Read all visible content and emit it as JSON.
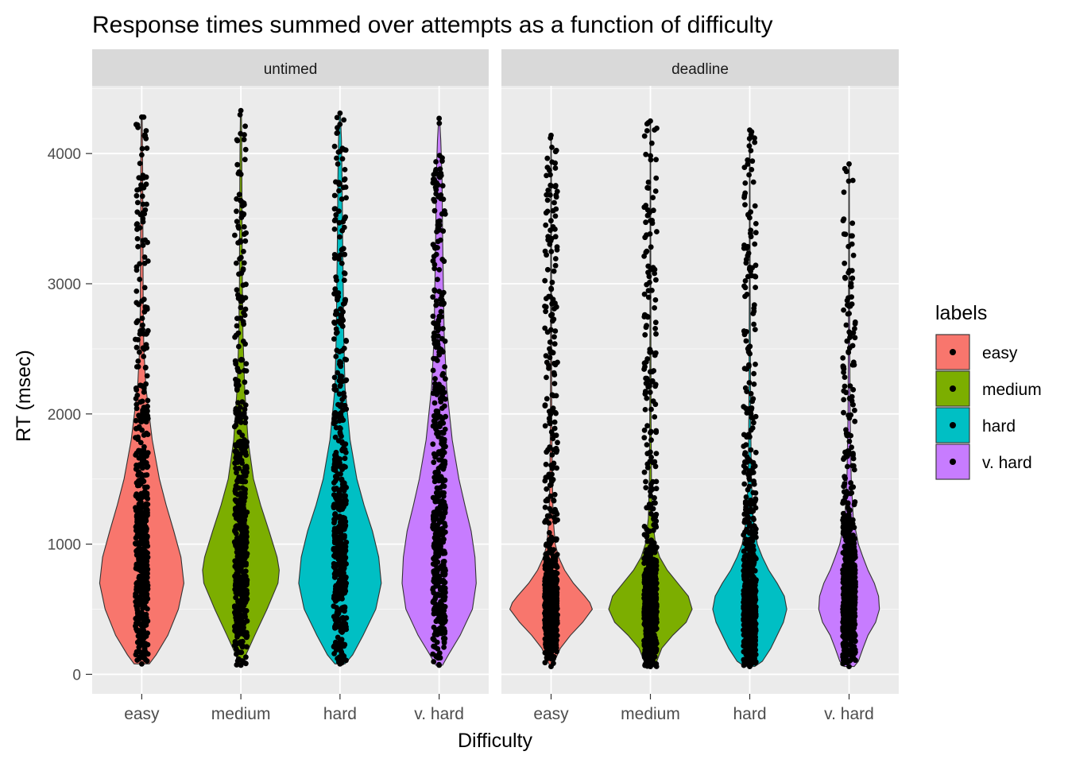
{
  "chart_data": {
    "type": "violin",
    "title": "Response times summed over attempts as a function of difficulty",
    "xlabel": "Difficulty",
    "ylabel": "RT (msec)",
    "categories": [
      "easy",
      "medium",
      "hard",
      "v. hard"
    ],
    "ylim": [
      -150,
      4520
    ],
    "y_ticks": [
      0,
      1000,
      2000,
      3000,
      4000
    ],
    "grid": true,
    "legend": {
      "title": "labels",
      "placement": "right",
      "entries": [
        "easy",
        "medium",
        "hard",
        "v. hard"
      ]
    },
    "colors": {
      "easy": "#F8766D",
      "medium": "#7CAE00",
      "hard": "#00BFC4",
      "v. hard": "#C77CFF",
      "panel_bg": "#EBEBEB",
      "strip_bg": "#D9D9D9",
      "points": "#000000"
    },
    "panels": [
      {
        "label": "untimed",
        "violins": [
          {
            "category": "easy",
            "min": 80,
            "max": 4280,
            "profile": [
              [
                80,
                0.18
              ],
              [
                150,
                0.34
              ],
              [
                300,
                0.62
              ],
              [
                500,
                0.87
              ],
              [
                700,
                1.0
              ],
              [
                900,
                0.93
              ],
              [
                1100,
                0.76
              ],
              [
                1300,
                0.58
              ],
              [
                1500,
                0.42
              ],
              [
                1800,
                0.25
              ],
              [
                2200,
                0.1
              ],
              [
                2500,
                0.05
              ],
              [
                2800,
                0.035
              ],
              [
                3200,
                0.03
              ],
              [
                3600,
                0.025
              ],
              [
                4000,
                0.02
              ],
              [
                4280,
                0.01
              ]
            ]
          },
          {
            "category": "medium",
            "min": 70,
            "max": 4330,
            "profile": [
              [
                70,
                0.05
              ],
              [
                150,
                0.12
              ],
              [
                300,
                0.33
              ],
              [
                500,
                0.62
              ],
              [
                700,
                0.88
              ],
              [
                800,
                0.91
              ],
              [
                900,
                0.86
              ],
              [
                1100,
                0.67
              ],
              [
                1300,
                0.47
              ],
              [
                1500,
                0.3
              ],
              [
                1800,
                0.17
              ],
              [
                2200,
                0.09
              ],
              [
                2600,
                0.05
              ],
              [
                3000,
                0.035
              ],
              [
                3400,
                0.03
              ],
              [
                3800,
                0.025
              ],
              [
                4100,
                0.02
              ],
              [
                4330,
                0.01
              ]
            ]
          },
          {
            "category": "hard",
            "min": 80,
            "max": 4310,
            "profile": [
              [
                80,
                0.12
              ],
              [
                150,
                0.3
              ],
              [
                300,
                0.55
              ],
              [
                500,
                0.85
              ],
              [
                700,
                0.98
              ],
              [
                900,
                0.92
              ],
              [
                1100,
                0.77
              ],
              [
                1300,
                0.57
              ],
              [
                1500,
                0.4
              ],
              [
                1800,
                0.24
              ],
              [
                2200,
                0.12
              ],
              [
                2600,
                0.09
              ],
              [
                3000,
                0.075
              ],
              [
                3400,
                0.06
              ],
              [
                3800,
                0.05
              ],
              [
                4100,
                0.035
              ],
              [
                4310,
                0.01
              ]
            ]
          },
          {
            "category": "v. hard",
            "min": 70,
            "max": 4270,
            "profile": [
              [
                70,
                0.08
              ],
              [
                150,
                0.22
              ],
              [
                300,
                0.5
              ],
              [
                500,
                0.79
              ],
              [
                700,
                0.88
              ],
              [
                900,
                0.85
              ],
              [
                1100,
                0.76
              ],
              [
                1300,
                0.61
              ],
              [
                1500,
                0.47
              ],
              [
                1800,
                0.31
              ],
              [
                2200,
                0.18
              ],
              [
                2600,
                0.12
              ],
              [
                3000,
                0.1
              ],
              [
                3400,
                0.08
              ],
              [
                3800,
                0.07
              ],
              [
                4100,
                0.04
              ],
              [
                4270,
                0.01
              ]
            ]
          }
        ]
      },
      {
        "label": "deadline",
        "violins": [
          {
            "category": "easy",
            "min": 60,
            "max": 4140,
            "profile": [
              [
                60,
                0.02
              ],
              [
                100,
                0.08
              ],
              [
                200,
                0.22
              ],
              [
                300,
                0.46
              ],
              [
                400,
                0.75
              ],
              [
                500,
                0.98
              ],
              [
                550,
                0.92
              ],
              [
                600,
                0.8
              ],
              [
                700,
                0.53
              ],
              [
                800,
                0.32
              ],
              [
                900,
                0.18
              ],
              [
                1000,
                0.1
              ],
              [
                1200,
                0.05
              ],
              [
                1500,
                0.03
              ],
              [
                2000,
                0.015
              ],
              [
                3000,
                0.01
              ],
              [
                4140,
                0.005
              ]
            ]
          },
          {
            "category": "medium",
            "min": 60,
            "max": 4250,
            "profile": [
              [
                60,
                0.08
              ],
              [
                100,
                0.15
              ],
              [
                200,
                0.27
              ],
              [
                300,
                0.53
              ],
              [
                400,
                0.85
              ],
              [
                500,
                0.99
              ],
              [
                600,
                0.9
              ],
              [
                700,
                0.65
              ],
              [
                800,
                0.4
              ],
              [
                900,
                0.22
              ],
              [
                1000,
                0.12
              ],
              [
                1200,
                0.05
              ],
              [
                1500,
                0.025
              ],
              [
                2000,
                0.015
              ],
              [
                3000,
                0.01
              ],
              [
                4250,
                0.005
              ]
            ]
          },
          {
            "category": "hard",
            "min": 60,
            "max": 4180,
            "profile": [
              [
                60,
                0.12
              ],
              [
                100,
                0.3
              ],
              [
                200,
                0.5
              ],
              [
                300,
                0.65
              ],
              [
                400,
                0.8
              ],
              [
                500,
                0.88
              ],
              [
                600,
                0.82
              ],
              [
                700,
                0.65
              ],
              [
                800,
                0.45
              ],
              [
                900,
                0.3
              ],
              [
                1000,
                0.18
              ],
              [
                1200,
                0.08
              ],
              [
                1500,
                0.04
              ],
              [
                2000,
                0.02
              ],
              [
                3000,
                0.01
              ],
              [
                4180,
                0.005
              ]
            ]
          },
          {
            "category": "v. hard",
            "min": 60,
            "max": 3920,
            "profile": [
              [
                60,
                0.12
              ],
              [
                100,
                0.22
              ],
              [
                200,
                0.33
              ],
              [
                300,
                0.45
              ],
              [
                400,
                0.63
              ],
              [
                500,
                0.72
              ],
              [
                600,
                0.7
              ],
              [
                700,
                0.6
              ],
              [
                800,
                0.45
              ],
              [
                900,
                0.33
              ],
              [
                1000,
                0.22
              ],
              [
                1200,
                0.1
              ],
              [
                1500,
                0.05
              ],
              [
                2000,
                0.025
              ],
              [
                3000,
                0.01
              ],
              [
                3920,
                0.005
              ]
            ]
          }
        ]
      }
    ]
  }
}
